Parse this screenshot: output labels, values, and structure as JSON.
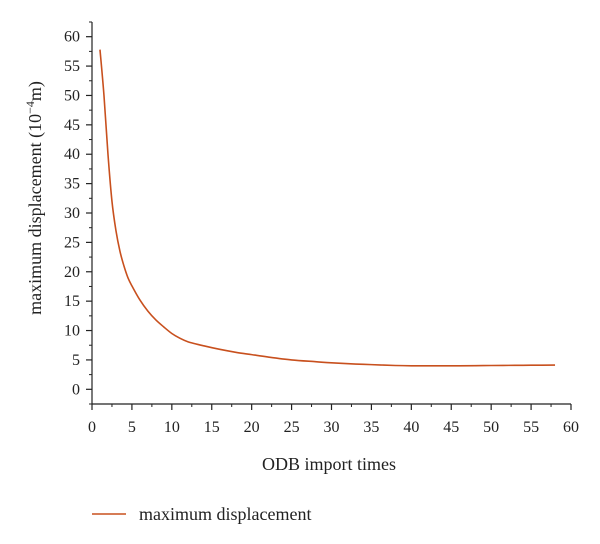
{
  "chart_data": {
    "type": "line",
    "xlabel": "ODB import times",
    "ylabel": "maximum displacement (10",
    "ylabel_sup": "−4",
    "ylabel_end": "m)",
    "xlim": [
      0,
      60
    ],
    "ylim": [
      -2.5,
      62.5
    ],
    "xticks": [
      "0",
      "5",
      "10",
      "15",
      "20",
      "25",
      "30",
      "35",
      "40",
      "45",
      "50",
      "55",
      "60"
    ],
    "yticks": [
      "0",
      "5",
      "10",
      "15",
      "20",
      "25",
      "30",
      "35",
      "40",
      "45",
      "50",
      "55",
      "60"
    ],
    "grid": false,
    "legend_position": "bottom-left",
    "series": [
      {
        "name": "maximum displacement",
        "color": "#c8501e",
        "x": [
          1,
          1.5,
          2,
          2.5,
          3,
          3.5,
          4,
          4.5,
          5,
          6,
          7,
          8,
          9,
          10,
          11,
          12,
          14,
          16,
          18,
          20,
          22,
          25,
          28,
          30,
          33,
          35,
          38,
          40,
          42,
          45,
          48,
          50,
          53,
          55,
          58
        ],
        "y": [
          57.8,
          50,
          40,
          32,
          27,
          23.5,
          21,
          19,
          17.6,
          15.2,
          13.3,
          11.8,
          10.6,
          9.5,
          8.7,
          8.1,
          7.4,
          6.8,
          6.3,
          5.9,
          5.5,
          5.0,
          4.7,
          4.5,
          4.3,
          4.2,
          4.05,
          4.0,
          4.0,
          4.0,
          4.02,
          4.05,
          4.08,
          4.1,
          4.12
        ]
      }
    ]
  }
}
